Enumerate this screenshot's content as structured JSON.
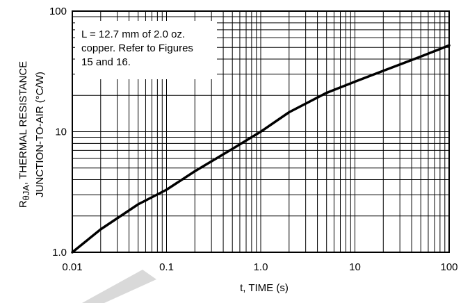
{
  "chart_data": {
    "type": "line",
    "title": "",
    "xlabel": "t, TIME (s)",
    "ylabel_line1_prefix": "R",
    "ylabel_line1_sub": "θJA",
    "ylabel_line1_rest": ", THERMAL RESISTANCE",
    "ylabel_line2": "JUNCTION-TO-AIR (°C/W)",
    "x_scale": "log",
    "y_scale": "log",
    "xlim": [
      0.01,
      100
    ],
    "ylim": [
      1.0,
      100
    ],
    "x_ticks": [
      0.01,
      0.1,
      1,
      10,
      100
    ],
    "x_tick_labels": [
      "0.01",
      "0.1",
      "1.0",
      "10",
      "100"
    ],
    "y_ticks": [
      1,
      10,
      100
    ],
    "y_tick_labels": [
      "1.0",
      "10",
      "100"
    ],
    "grid": true,
    "annotation_lines": [
      "L = 12.7 mm of 2.0 oz.",
      "copper. Refer to Figures",
      "15 and 16."
    ],
    "series": [
      {
        "x": [
          0.01,
          0.02,
          0.05,
          0.1,
          0.2,
          0.5,
          1,
          2,
          5,
          10,
          20,
          50,
          100
        ],
        "y": [
          1.0,
          1.55,
          2.5,
          3.3,
          4.7,
          7.2,
          10,
          14.5,
          21,
          26,
          32,
          42,
          52
        ]
      }
    ]
  }
}
